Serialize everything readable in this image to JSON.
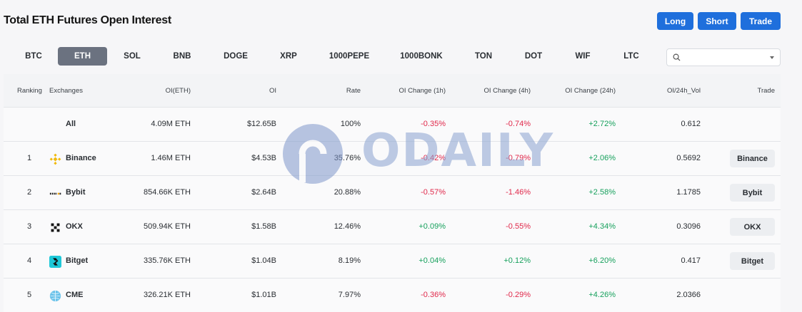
{
  "header": {
    "title": "Total ETH Futures Open Interest",
    "buttons": {
      "long": "Long",
      "short": "Short",
      "trade": "Trade"
    },
    "accent": "#1f6fdc"
  },
  "tabs": [
    "BTC",
    "ETH",
    "SOL",
    "BNB",
    "DOGE",
    "XRP",
    "1000PEPE",
    "1000BONK",
    "TON",
    "DOT",
    "WIF",
    "LTC"
  ],
  "active_tab": "ETH",
  "search": {
    "placeholder": "",
    "icon": "search-icon"
  },
  "table": {
    "columns": [
      "Ranking",
      "Exchanges",
      "OI(ETH)",
      "OI",
      "Rate",
      "OI Change (1h)",
      "OI Change (4h)",
      "OI Change (24h)",
      "OI/24h_Vol",
      "Trade"
    ],
    "all_row": {
      "exchange": "All",
      "oi_eth": "4.09M ETH",
      "oi": "$12.65B",
      "rate": "100%",
      "ch1h": "-0.35%",
      "ch4h": "-0.74%",
      "ch24h": "+2.72%",
      "vol": "0.612"
    },
    "rows": [
      {
        "rank": "1",
        "exchange": "Binance",
        "icon": "binance-icon",
        "oi_eth": "1.46M ETH",
        "oi": "$4.53B",
        "rate": "35.76%",
        "ch1h": "-0.42%",
        "ch4h": "-0.79%",
        "ch24h": "+2.06%",
        "vol": "0.5692",
        "trade": "Binance"
      },
      {
        "rank": "2",
        "exchange": "Bybit",
        "icon": "bybit-icon",
        "oi_eth": "854.66K ETH",
        "oi": "$2.64B",
        "rate": "20.88%",
        "ch1h": "-0.57%",
        "ch4h": "-1.46%",
        "ch24h": "+2.58%",
        "vol": "1.1785",
        "trade": "Bybit"
      },
      {
        "rank": "3",
        "exchange": "OKX",
        "icon": "okx-icon",
        "oi_eth": "509.94K ETH",
        "oi": "$1.58B",
        "rate": "12.46%",
        "ch1h": "+0.09%",
        "ch4h": "-0.55%",
        "ch24h": "+4.34%",
        "vol": "0.3096",
        "trade": "OKX"
      },
      {
        "rank": "4",
        "exchange": "Bitget",
        "icon": "bitget-icon",
        "oi_eth": "335.76K ETH",
        "oi": "$1.04B",
        "rate": "8.19%",
        "ch1h": "+0.04%",
        "ch4h": "+0.12%",
        "ch24h": "+6.20%",
        "vol": "0.417",
        "trade": "Bitget"
      },
      {
        "rank": "5",
        "exchange": "CME",
        "icon": "cme-icon",
        "oi_eth": "326.21K ETH",
        "oi": "$1.01B",
        "rate": "7.97%",
        "ch1h": "-0.36%",
        "ch4h": "-0.29%",
        "ch24h": "+4.26%",
        "vol": "2.0366",
        "trade": ""
      }
    ]
  },
  "watermark": {
    "text": "ODAILY"
  },
  "colors": {
    "negative": "#e0284a",
    "positive": "#16a05c"
  }
}
